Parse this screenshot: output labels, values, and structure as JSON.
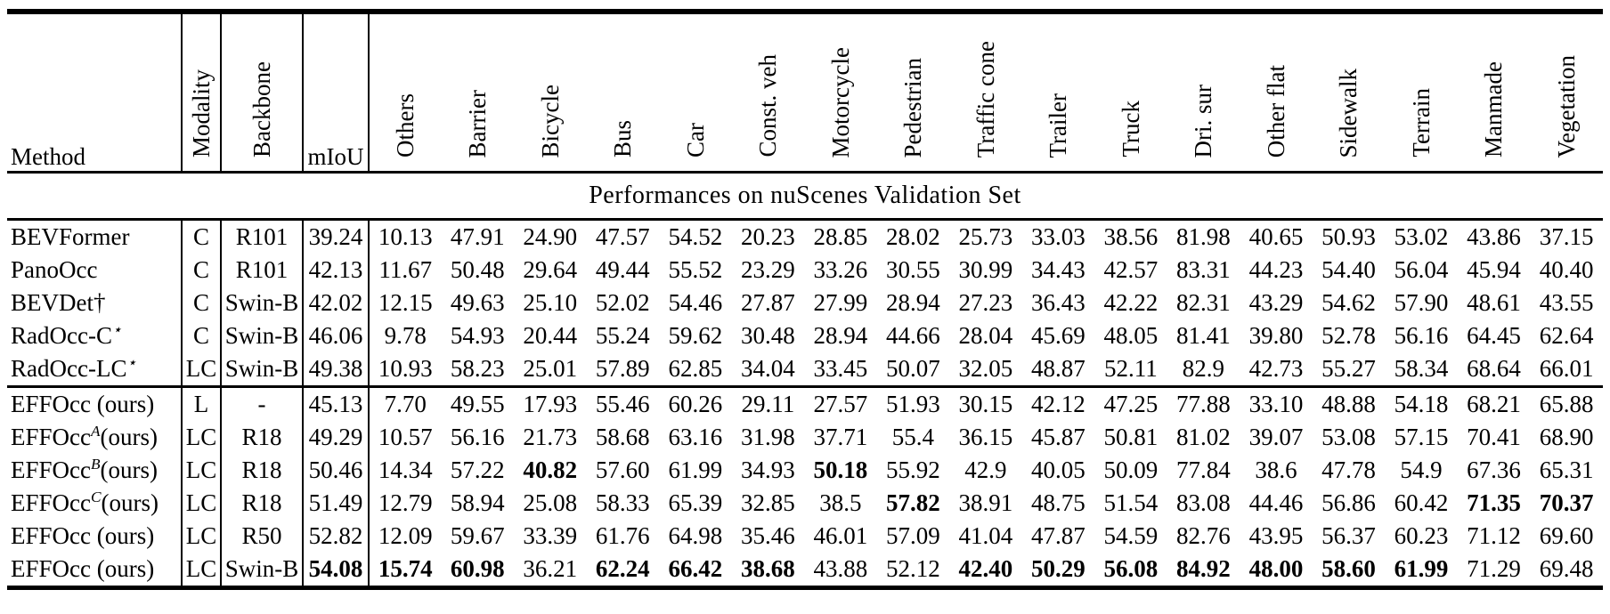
{
  "table": {
    "section_title": "Performances on nuScenes Validation Set",
    "columns": [
      {
        "label": "Method",
        "rotated": false
      },
      {
        "label": "Modality",
        "rotated": true
      },
      {
        "label": "Backbone",
        "rotated": true
      },
      {
        "label": "mIoU",
        "rotated": false
      },
      {
        "label": "Others",
        "rotated": true
      },
      {
        "label": "Barrier",
        "rotated": true
      },
      {
        "label": "Bicycle",
        "rotated": true
      },
      {
        "label": "Bus",
        "rotated": true
      },
      {
        "label": "Car",
        "rotated": true
      },
      {
        "label": "Const. veh",
        "rotated": true
      },
      {
        "label": "Motorcycle",
        "rotated": true
      },
      {
        "label": "Pedestrian",
        "rotated": true
      },
      {
        "label": "Traffic cone",
        "rotated": true
      },
      {
        "label": "Trailer",
        "rotated": true
      },
      {
        "label": "Truck",
        "rotated": true
      },
      {
        "label": "Dri. sur",
        "rotated": true
      },
      {
        "label": "Other flat",
        "rotated": true
      },
      {
        "label": "Sidewalk",
        "rotated": true
      },
      {
        "label": "Terrain",
        "rotated": true
      },
      {
        "label": "Manmade",
        "rotated": true
      },
      {
        "label": "Vegetation",
        "rotated": true
      }
    ],
    "groups": [
      {
        "rows": [
          {
            "method": {
              "base": "BEVFormer",
              "sup": "",
              "rest": ""
            },
            "modality": "C",
            "backbone": "R101",
            "miou": "39.24",
            "miou_bold": false,
            "values": [
              "10.13",
              "47.91",
              "24.90",
              "47.57",
              "54.52",
              "20.23",
              "28.85",
              "28.02",
              "25.73",
              "33.03",
              "38.56",
              "81.98",
              "40.65",
              "50.93",
              "53.02",
              "43.86",
              "37.15"
            ],
            "bold_cols": []
          },
          {
            "method": {
              "base": "PanoOcc",
              "sup": "",
              "rest": ""
            },
            "modality": "C",
            "backbone": "R101",
            "miou": "42.13",
            "miou_bold": false,
            "values": [
              "11.67",
              "50.48",
              "29.64",
              "49.44",
              "55.52",
              "23.29",
              "33.26",
              "30.55",
              "30.99",
              "34.43",
              "42.57",
              "83.31",
              "44.23",
              "54.40",
              "56.04",
              "45.94",
              "40.40"
            ],
            "bold_cols": []
          },
          {
            "method": {
              "base": "BEVDet†",
              "sup": "",
              "rest": ""
            },
            "modality": "C",
            "backbone": "Swin-B",
            "miou": "42.02",
            "miou_bold": false,
            "values": [
              "12.15",
              "49.63",
              "25.10",
              "52.02",
              "54.46",
              "27.87",
              "27.99",
              "28.94",
              "27.23",
              "36.43",
              "42.22",
              "82.31",
              "43.29",
              "54.62",
              "57.90",
              "48.61",
              "43.55"
            ],
            "bold_cols": []
          },
          {
            "method": {
              "base": "RadOcc-C",
              "sup": "⋆",
              "rest": ""
            },
            "modality": "C",
            "backbone": "Swin-B",
            "miou": "46.06",
            "miou_bold": false,
            "values": [
              "9.78",
              "54.93",
              "20.44",
              "55.24",
              "59.62",
              "30.48",
              "28.94",
              "44.66",
              "28.04",
              "45.69",
              "48.05",
              "81.41",
              "39.80",
              "52.78",
              "56.16",
              "64.45",
              "62.64"
            ],
            "bold_cols": []
          },
          {
            "method": {
              "base": "RadOcc-LC",
              "sup": "⋆",
              "rest": ""
            },
            "modality": "LC",
            "backbone": "Swin-B",
            "miou": "49.38",
            "miou_bold": false,
            "values": [
              "10.93",
              "58.23",
              "25.01",
              "57.89",
              "62.85",
              "34.04",
              "33.45",
              "50.07",
              "32.05",
              "48.87",
              "52.11",
              "82.9",
              "42.73",
              "55.27",
              "58.34",
              "68.64",
              "66.01"
            ],
            "bold_cols": []
          }
        ]
      },
      {
        "rows": [
          {
            "method": {
              "base": "EFFOcc (ours)",
              "sup": "",
              "rest": ""
            },
            "modality": "L",
            "backbone": "-",
            "miou": "45.13",
            "miou_bold": false,
            "values": [
              "7.70",
              "49.55",
              "17.93",
              "55.46",
              "60.26",
              "29.11",
              "27.57",
              "51.93",
              "30.15",
              "42.12",
              "47.25",
              "77.88",
              "33.10",
              "48.88",
              "54.18",
              "68.21",
              "65.88"
            ],
            "bold_cols": []
          },
          {
            "method": {
              "base": "EFFOcc",
              "sup": "A",
              "rest": "(ours)"
            },
            "modality": "LC",
            "backbone": "R18",
            "miou": "49.29",
            "miou_bold": false,
            "values": [
              "10.57",
              "56.16",
              "21.73",
              "58.68",
              "63.16",
              "31.98",
              "37.71",
              "55.4",
              "36.15",
              "45.87",
              "50.81",
              "81.02",
              "39.07",
              "53.08",
              "57.15",
              "70.41",
              "68.90"
            ],
            "bold_cols": []
          },
          {
            "method": {
              "base": "EFFOcc",
              "sup": "B",
              "rest": "(ours)"
            },
            "modality": "LC",
            "backbone": "R18",
            "miou": "50.46",
            "miou_bold": false,
            "values": [
              "14.34",
              "57.22",
              "40.82",
              "57.60",
              "61.99",
              "34.93",
              "50.18",
              "55.92",
              "42.9",
              "40.05",
              "50.09",
              "77.84",
              "38.6",
              "47.78",
              "54.9",
              "67.36",
              "65.31"
            ],
            "bold_cols": [
              2,
              6
            ]
          },
          {
            "method": {
              "base": "EFFOcc",
              "sup": "C",
              "rest": "(ours)"
            },
            "modality": "LC",
            "backbone": "R18",
            "miou": "51.49",
            "miou_bold": false,
            "values": [
              "12.79",
              "58.94",
              "25.08",
              "58.33",
              "65.39",
              "32.85",
              "38.5",
              "57.82",
              "38.91",
              "48.75",
              "51.54",
              "83.08",
              "44.46",
              "56.86",
              "60.42",
              "71.35",
              "70.37"
            ],
            "bold_cols": [
              7,
              15,
              16
            ]
          },
          {
            "method": {
              "base": "EFFOcc (ours)",
              "sup": "",
              "rest": ""
            },
            "modality": "LC",
            "backbone": "R50",
            "miou": "52.82",
            "miou_bold": false,
            "values": [
              "12.09",
              "59.67",
              "33.39",
              "61.76",
              "64.98",
              "35.46",
              "46.01",
              "57.09",
              "41.04",
              "47.87",
              "54.59",
              "82.76",
              "43.95",
              "56.37",
              "60.23",
              "71.12",
              "69.60"
            ],
            "bold_cols": []
          },
          {
            "method": {
              "base": "EFFOcc (ours)",
              "sup": "",
              "rest": ""
            },
            "modality": "LC",
            "backbone": "Swin-B",
            "miou": "54.08",
            "miou_bold": true,
            "values": [
              "15.74",
              "60.98",
              "36.21",
              "62.24",
              "66.42",
              "38.68",
              "43.88",
              "52.12",
              "42.40",
              "50.29",
              "56.08",
              "84.92",
              "48.00",
              "58.60",
              "61.99",
              "71.29",
              "69.48"
            ],
            "bold_cols": [
              0,
              1,
              3,
              4,
              5,
              8,
              9,
              10,
              11,
              12,
              13,
              14
            ]
          }
        ]
      }
    ]
  }
}
